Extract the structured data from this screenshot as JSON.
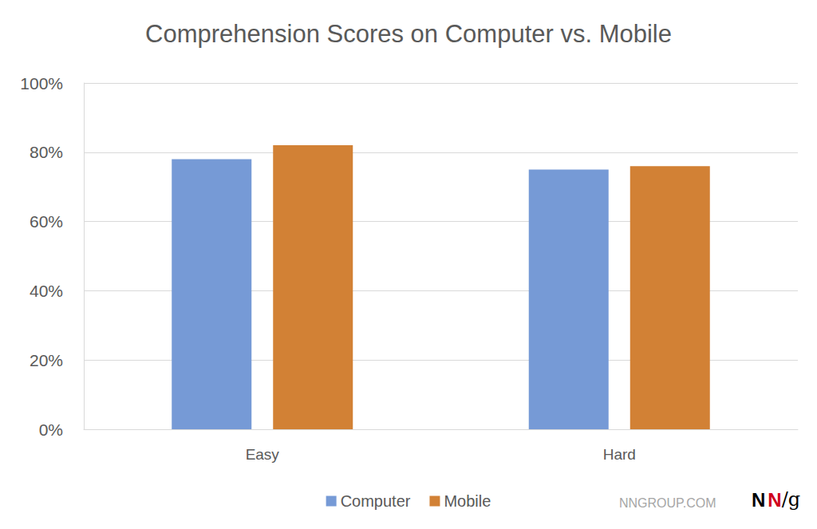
{
  "chart_data": {
    "type": "bar",
    "title": "Comprehension Scores on Computer vs. Mobile",
    "categories": [
      "Easy",
      "Hard"
    ],
    "series": [
      {
        "name": "Computer",
        "color": "#769ad6",
        "values": [
          78,
          75
        ]
      },
      {
        "name": "Mobile",
        "color": "#d28135",
        "values": [
          82,
          76
        ]
      }
    ],
    "ylim": [
      0,
      100
    ],
    "yticks": [
      {
        "value": 0,
        "label": "0%"
      },
      {
        "value": 20,
        "label": "20%"
      },
      {
        "value": 40,
        "label": "40%"
      },
      {
        "value": 60,
        "label": "60%"
      },
      {
        "value": 80,
        "label": "80%"
      },
      {
        "value": 100,
        "label": "100%"
      }
    ],
    "grid": true,
    "legend": "bottom",
    "annotations": [
      "NNGROUP.COM",
      "NN/g"
    ]
  }
}
